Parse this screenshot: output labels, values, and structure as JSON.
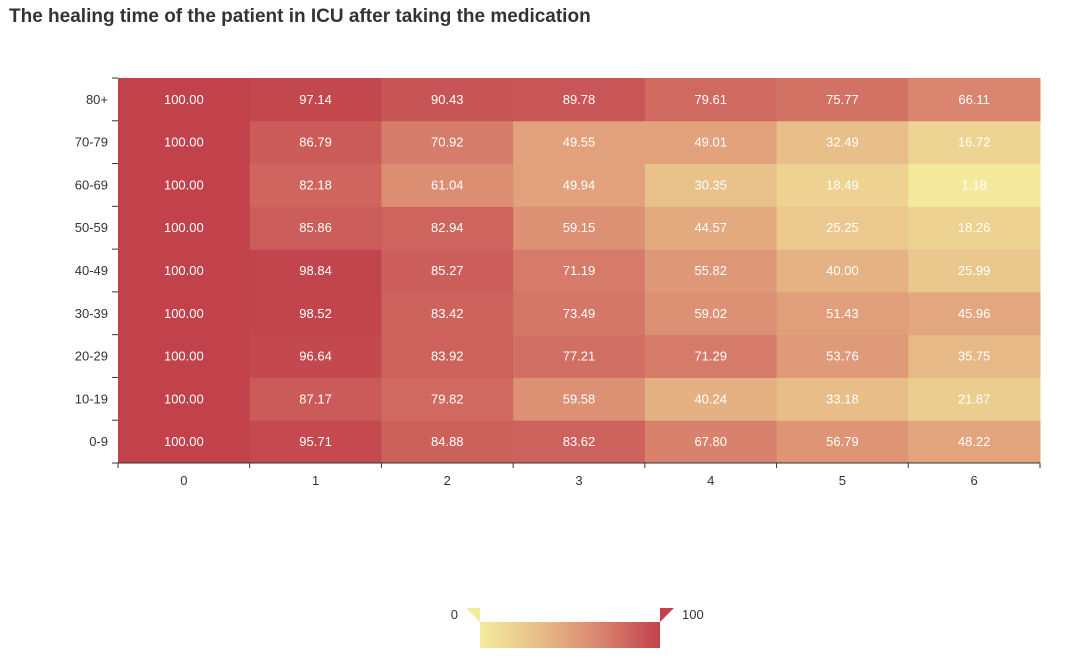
{
  "chart_data": {
    "type": "heatmap",
    "title": "The healing time of the patient in ICU after taking the medication",
    "xlabel": "",
    "ylabel": "",
    "x_categories": [
      "0",
      "1",
      "2",
      "3",
      "4",
      "5",
      "6"
    ],
    "y_categories": [
      "0-9",
      "10-19",
      "20-29",
      "30-39",
      "40-49",
      "50-59",
      "60-69",
      "70-79",
      "80+"
    ],
    "values": [
      [
        100.0,
        95.71,
        84.88,
        83.62,
        67.8,
        56.79,
        48.22
      ],
      [
        100.0,
        87.17,
        79.82,
        59.58,
        40.24,
        33.18,
        21.87
      ],
      [
        100.0,
        96.64,
        83.92,
        77.21,
        71.29,
        53.76,
        35.75
      ],
      [
        100.0,
        98.52,
        83.42,
        73.49,
        59.02,
        51.43,
        45.96
      ],
      [
        100.0,
        98.84,
        85.27,
        71.19,
        55.82,
        40.0,
        25.99
      ],
      [
        100.0,
        85.86,
        82.94,
        59.15,
        44.57,
        25.25,
        18.26
      ],
      [
        100.0,
        82.18,
        61.04,
        49.94,
        30.35,
        18.49,
        1.18
      ],
      [
        100.0,
        86.79,
        70.92,
        49.55,
        49.01,
        32.49,
        16.72
      ],
      [
        100.0,
        97.14,
        90.43,
        89.78,
        79.61,
        75.77,
        66.11
      ]
    ],
    "value_format_decimals": 2,
    "visual_map": {
      "min": 0,
      "max": 100,
      "min_label": "0",
      "max_label": "100",
      "orientation": "horizontal",
      "placement": "bottom-center",
      "colors": [
        "#f3ec9e",
        "#e8bd88",
        "#d9846f",
        "#c1424b"
      ]
    }
  }
}
